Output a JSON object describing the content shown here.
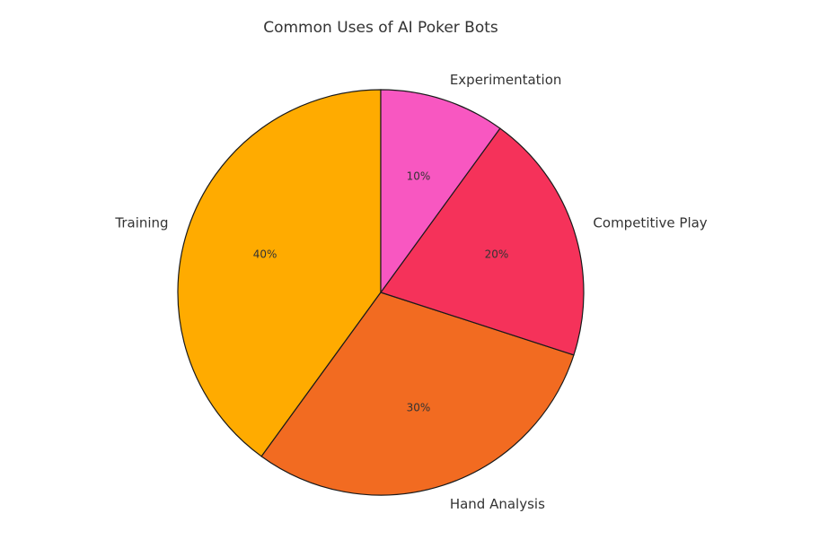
{
  "chart_data": {
    "type": "pie",
    "title": "Common Uses of AI Poker Bots",
    "categories": [
      "Training",
      "Hand Analysis",
      "Competitive Play",
      "Experimentation"
    ],
    "values": [
      40,
      30,
      20,
      10
    ],
    "value_labels": [
      "40%",
      "30%",
      "20%",
      "10%"
    ],
    "colors": [
      "#ffab00",
      "#f26b21",
      "#f5325a",
      "#f857c1"
    ],
    "start_angle": 90
  }
}
